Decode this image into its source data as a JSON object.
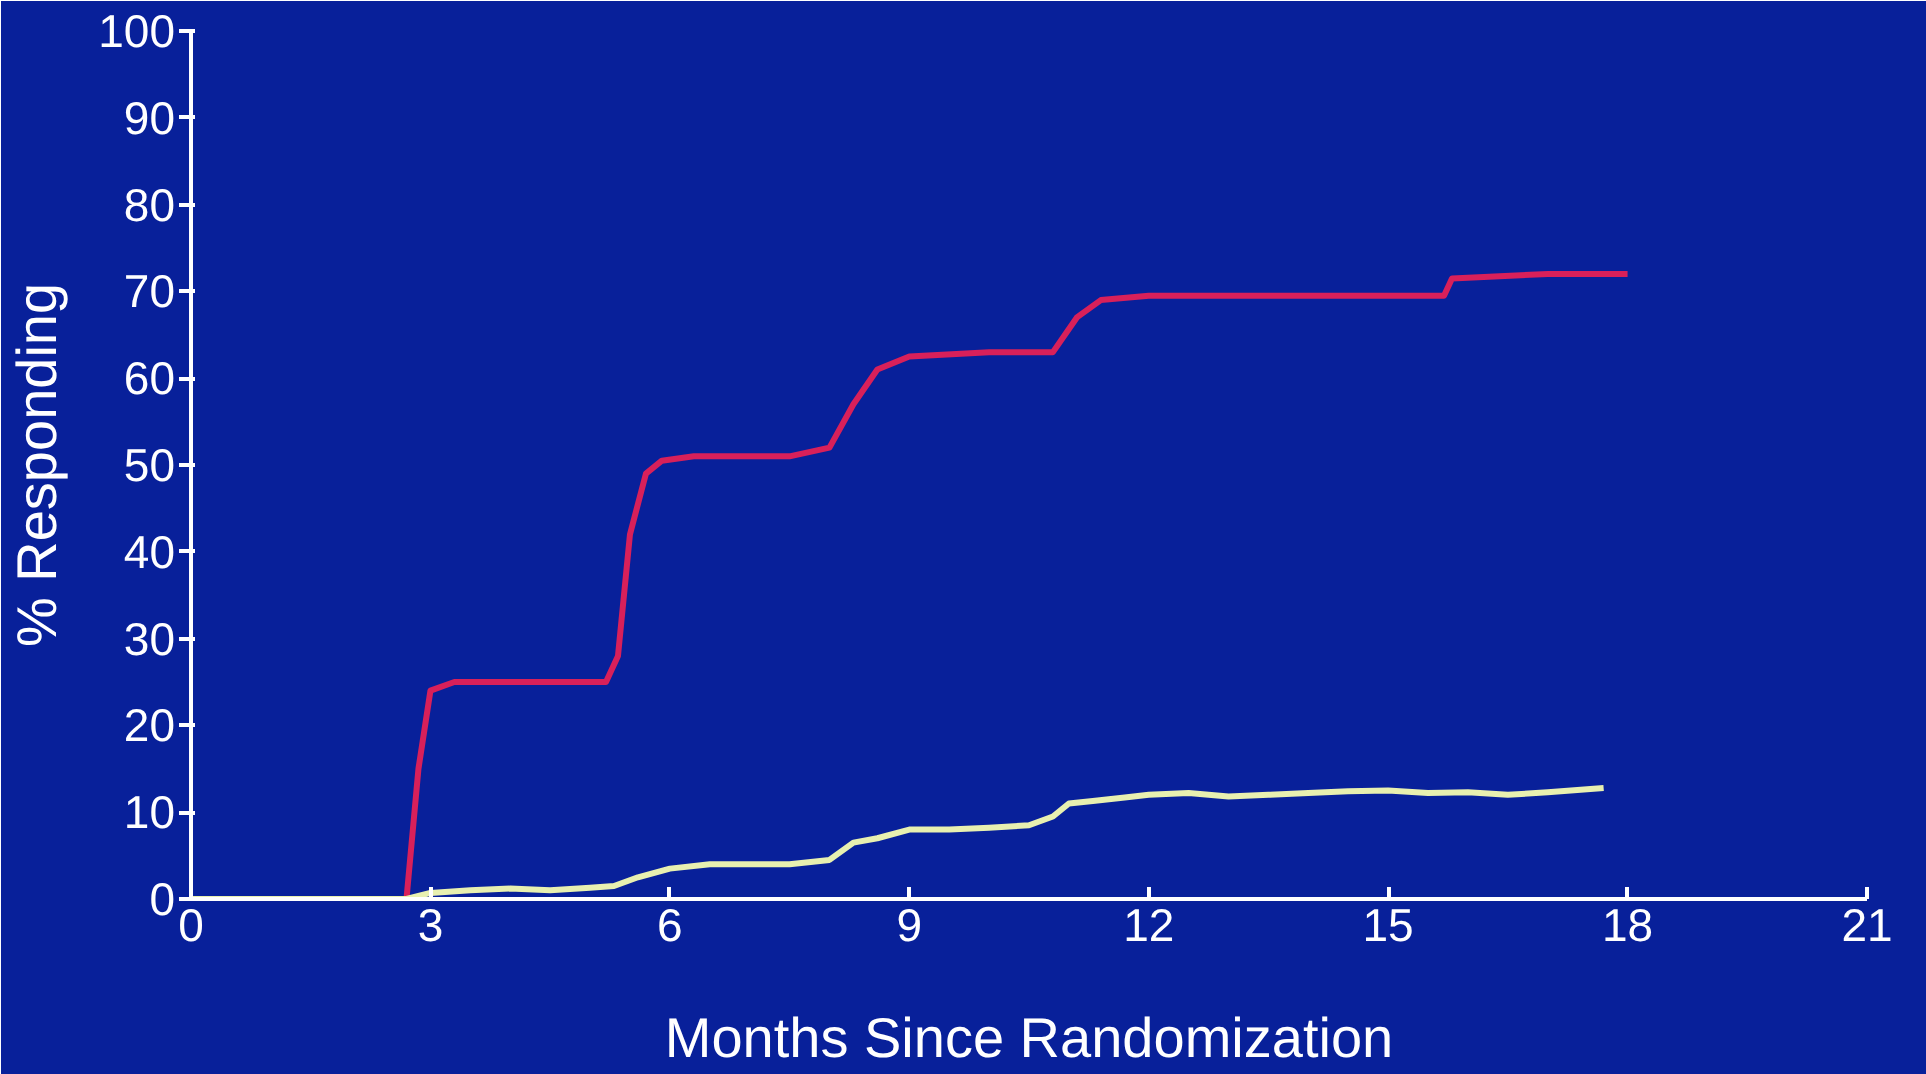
{
  "chart_data": {
    "type": "line",
    "xlabel": "Months Since Randomization",
    "ylabel": "% Responding",
    "xlim": [
      0,
      21
    ],
    "ylim": [
      0,
      100
    ],
    "xticks": [
      0,
      3,
      6,
      9,
      12,
      15,
      18,
      21
    ],
    "yticks": [
      0,
      10,
      20,
      30,
      40,
      50,
      60,
      70,
      80,
      90,
      100
    ],
    "grid": false,
    "line_style": "solid",
    "marker": "none",
    "series": [
      {
        "color": "#d8205a",
        "x": [
          0,
          2.7,
          2.85,
          3.0,
          3.3,
          4.0,
          5.2,
          5.35,
          5.5,
          5.7,
          5.9,
          6.3,
          7.5,
          8.0,
          8.3,
          8.6,
          9.0,
          10.0,
          10.8,
          11.1,
          11.4,
          12.0,
          14.0,
          15.7,
          15.8,
          17.0,
          18.0
        ],
        "values": [
          0,
          0,
          15,
          24,
          25,
          25,
          25,
          28,
          42,
          49,
          50.5,
          51,
          51,
          52,
          57,
          61,
          62.5,
          63,
          63,
          67,
          69,
          69.5,
          69.5,
          69.5,
          71.5,
          72,
          72
        ]
      },
      {
        "color": "#e8f0b0",
        "x": [
          0,
          2.7,
          3.0,
          3.5,
          4.0,
          4.5,
          5.0,
          5.3,
          5.6,
          6.0,
          6.5,
          7.0,
          7.5,
          8.0,
          8.3,
          8.6,
          9.0,
          9.5,
          10.0,
          10.5,
          10.8,
          11.0,
          11.3,
          11.7,
          12.0,
          12.5,
          13.0,
          13.5,
          14.0,
          14.5,
          15.0,
          15.5,
          16.0,
          16.5,
          17.0,
          17.7
        ],
        "values": [
          0,
          0,
          0.7,
          1,
          1.2,
          1,
          1.3,
          1.5,
          2.5,
          3.5,
          4,
          4,
          4,
          4.5,
          6.5,
          7,
          8,
          8,
          8.2,
          8.5,
          9.5,
          11,
          11.3,
          11.7,
          12,
          12.2,
          11.8,
          12,
          12.2,
          12.4,
          12.5,
          12.2,
          12.3,
          12,
          12.3,
          12.8
        ]
      }
    ]
  }
}
